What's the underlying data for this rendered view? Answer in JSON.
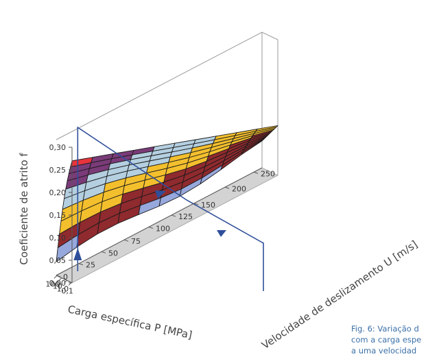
{
  "chart_data": {
    "type": "surface3d",
    "z_label": "Coeficiente de atrito f",
    "x_label": "Carga específica P [MPa]",
    "y_label": "Velocidade de deslizamento U [m/s]",
    "z_ticks": [
      "0,00",
      "0,05",
      "0,10",
      "0,15",
      "0,20",
      "0,25",
      "0,30"
    ],
    "z_range": [
      0,
      0.3
    ],
    "x_ticks": [
      "0,1",
      "1,0",
      "10",
      "100"
    ],
    "y_ticks": [
      "0",
      "25",
      "50",
      "75",
      "100",
      "125",
      "150",
      "200",
      "250"
    ],
    "surface_grid_size": [
      11,
      11
    ],
    "z_corner_values": {
      "low_load_low_speed": 0.27,
      "low_load_high_speed": 0.11,
      "high_load_low_speed": 0.03,
      "high_load_high_speed": 0.05
    },
    "color_bands": [
      {
        "from": 0.25,
        "to": 0.3,
        "color": "#e8343c"
      },
      {
        "from": 0.2,
        "to": 0.25,
        "color": "#7a3b78"
      },
      {
        "from": 0.15,
        "to": 0.2,
        "color": "#b4cfe0"
      },
      {
        "from": 0.1,
        "to": 0.15,
        "color": "#f3bf2d"
      },
      {
        "from": 0.05,
        "to": 0.1,
        "color": "#8f2a2e"
      },
      {
        "from": 0.0,
        "to": 0.05,
        "color": "#96a8dc"
      }
    ],
    "annotation_color": "#2f4f9a",
    "caption": [
      "Fig. 6: Variação d",
      "com a carga espe",
      "a uma velocidad"
    ]
  }
}
